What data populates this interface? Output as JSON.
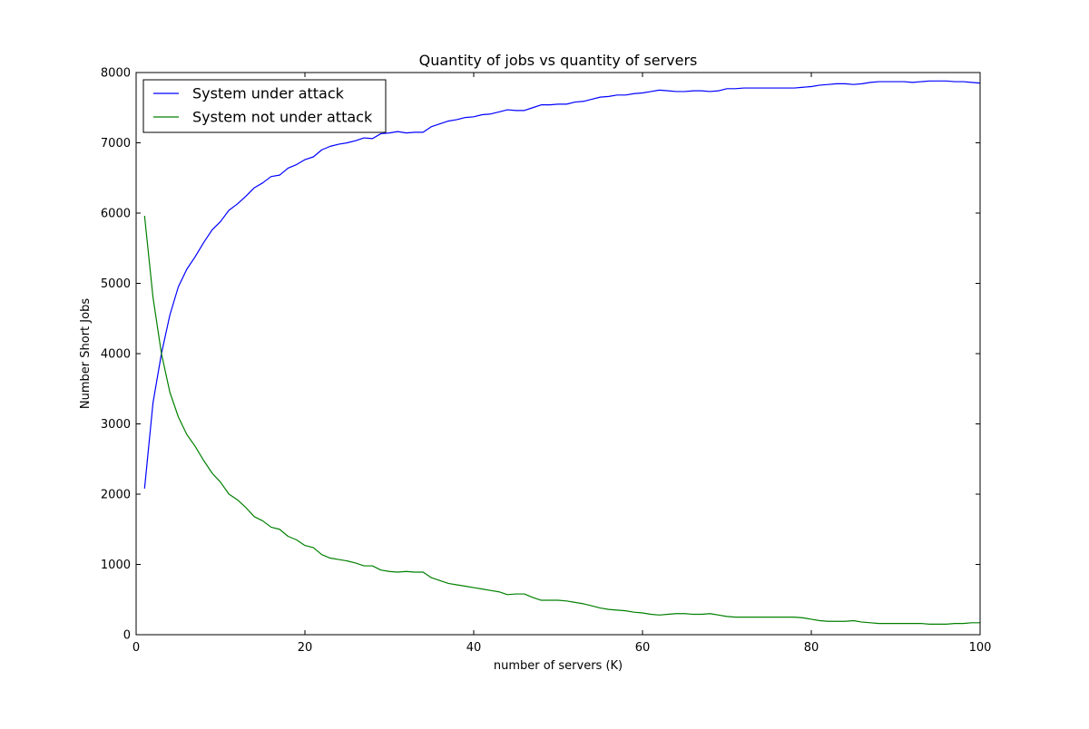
{
  "chart_data": {
    "type": "line",
    "title": "Quantity of jobs vs quantity of servers",
    "xlabel": "number of servers (K)",
    "ylabel": "Number Short Jobs",
    "xlim": [
      0,
      100
    ],
    "ylim": [
      0,
      8000
    ],
    "xticks": [
      0,
      20,
      40,
      60,
      80,
      100
    ],
    "yticks": [
      0,
      1000,
      2000,
      3000,
      4000,
      5000,
      6000,
      7000,
      8000
    ],
    "grid": false,
    "legend_position": "top-left",
    "x": [
      1,
      2,
      3,
      4,
      5,
      6,
      7,
      8,
      9,
      10,
      11,
      12,
      13,
      14,
      15,
      16,
      17,
      18,
      19,
      20,
      21,
      22,
      23,
      24,
      25,
      26,
      27,
      28,
      29,
      30,
      31,
      32,
      33,
      34,
      35,
      36,
      37,
      38,
      39,
      40,
      41,
      42,
      43,
      44,
      45,
      46,
      47,
      48,
      49,
      50,
      51,
      52,
      53,
      54,
      55,
      56,
      57,
      58,
      59,
      60,
      61,
      62,
      63,
      64,
      65,
      66,
      67,
      68,
      69,
      70,
      71,
      72,
      73,
      74,
      75,
      76,
      77,
      78,
      79,
      80,
      81,
      82,
      83,
      84,
      85,
      86,
      87,
      88,
      89,
      90,
      91,
      92,
      93,
      94,
      95,
      96,
      97,
      98,
      99,
      100
    ],
    "series": [
      {
        "name": "System under attack",
        "color": "#0000ff",
        "values": [
          2080,
          3300,
          4000,
          4550,
          4950,
          5200,
          5380,
          5580,
          5760,
          5880,
          6040,
          6130,
          6240,
          6360,
          6430,
          6520,
          6540,
          6640,
          6690,
          6760,
          6800,
          6900,
          6950,
          6980,
          7000,
          7030,
          7070,
          7060,
          7130,
          7140,
          7160,
          7140,
          7150,
          7150,
          7230,
          7270,
          7310,
          7330,
          7360,
          7370,
          7400,
          7410,
          7440,
          7470,
          7460,
          7460,
          7500,
          7540,
          7540,
          7550,
          7550,
          7580,
          7590,
          7620,
          7650,
          7660,
          7680,
          7680,
          7700,
          7710,
          7730,
          7750,
          7740,
          7730,
          7730,
          7740,
          7740,
          7730,
          7740,
          7770,
          7770,
          7780,
          7780,
          7780,
          7780,
          7780,
          7780,
          7780,
          7790,
          7800,
          7820,
          7830,
          7840,
          7840,
          7830,
          7840,
          7860,
          7870,
          7870,
          7870,
          7870,
          7860,
          7870,
          7880,
          7880,
          7880,
          7870,
          7870,
          7860,
          7850
        ]
      },
      {
        "name": "System not under attack",
        "color": "#008000",
        "values": [
          5960,
          4800,
          4000,
          3450,
          3100,
          2850,
          2680,
          2480,
          2300,
          2170,
          2000,
          1920,
          1810,
          1680,
          1620,
          1530,
          1500,
          1400,
          1350,
          1270,
          1240,
          1140,
          1090,
          1070,
          1050,
          1020,
          980,
          980,
          920,
          900,
          890,
          900,
          890,
          890,
          810,
          770,
          730,
          710,
          690,
          670,
          650,
          630,
          610,
          570,
          580,
          580,
          530,
          490,
          490,
          490,
          480,
          460,
          440,
          410,
          380,
          360,
          350,
          340,
          320,
          310,
          290,
          280,
          290,
          300,
          300,
          290,
          290,
          300,
          280,
          260,
          250,
          250,
          250,
          250,
          250,
          250,
          250,
          250,
          240,
          220,
          200,
          190,
          190,
          190,
          200,
          180,
          170,
          160,
          160,
          160,
          160,
          160,
          160,
          150,
          150,
          150,
          160,
          160,
          170,
          170
        ]
      }
    ]
  }
}
